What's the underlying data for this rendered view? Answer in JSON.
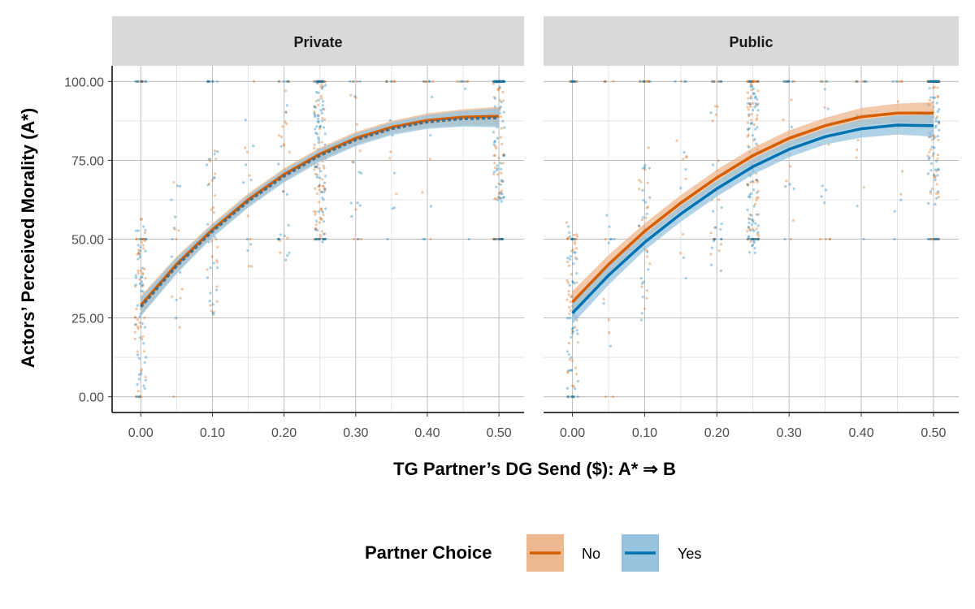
{
  "chart_data": {
    "type": "scatter",
    "xlabel": "TG Partner’s DG Send ($): A* ⇒ B",
    "ylabel": "Actors’ Perceived Morality (A*)",
    "xlim": [
      -0.04,
      0.535
    ],
    "ylim": [
      -5,
      105
    ],
    "x_ticks": [
      0.0,
      0.1,
      0.2,
      0.3,
      0.4,
      0.5
    ],
    "x_tick_labels": [
      "0.00",
      "0.10",
      "0.20",
      "0.30",
      "0.40",
      "0.50"
    ],
    "y_ticks": [
      0,
      25,
      50,
      75,
      100
    ],
    "y_tick_labels": [
      "0.00",
      "25.00",
      "50.00",
      "75.00",
      "100.00"
    ],
    "grid": true,
    "legend": {
      "title": "Partner Choice",
      "position": "bottom",
      "items": [
        {
          "label": "No",
          "color": "#D55E00",
          "fill": "#EDB88F"
        },
        {
          "label": "Yes",
          "color": "#0072B2",
          "fill": "#96C4DF"
        }
      ]
    },
    "point_x_levels": [
      0.0,
      0.05,
      0.1,
      0.15,
      0.2,
      0.25,
      0.3,
      0.35,
      0.4,
      0.45,
      0.5
    ],
    "point_note_shown_as": "jittered semi-transparent points",
    "panels": [
      {
        "title": "Private",
        "series": [
          {
            "name": "No",
            "x": [
              0,
              0.05,
              0.1,
              0.15,
              0.2,
              0.25,
              0.3,
              0.35,
              0.4,
              0.45,
              0.5
            ],
            "y": [
              29,
              42,
              53,
              62.5,
              70.5,
              77,
              82,
              85.5,
              87.7,
              88.7,
              89
            ],
            "ci_halfwidth": [
              3,
              2.5,
              2,
              2,
              2,
              2,
              2,
              2,
              2.2,
              2.5,
              3
            ]
          },
          {
            "name": "Yes",
            "x": [
              0,
              0.05,
              0.1,
              0.15,
              0.2,
              0.25,
              0.3,
              0.35,
              0.4,
              0.45,
              0.5
            ],
            "y": [
              28.5,
              41.5,
              52.5,
              62,
              70,
              76.5,
              81.5,
              85,
              87.2,
              88.2,
              88.5
            ],
            "ci_halfwidth": [
              3,
              2.5,
              2,
              2,
              2,
              2,
              2,
              2,
              2.2,
              2.5,
              3
            ]
          }
        ]
      },
      {
        "title": "Public",
        "series": [
          {
            "name": "No",
            "x": [
              0,
              0.05,
              0.1,
              0.15,
              0.2,
              0.25,
              0.3,
              0.35,
              0.4,
              0.45,
              0.5
            ],
            "y": [
              30,
              42,
              52.5,
              61.5,
              69.5,
              76.5,
              82,
              86,
              88.8,
              90,
              90
            ],
            "ci_halfwidth": [
              3.5,
              3,
              2.5,
              2.5,
              2.5,
              2.5,
              2.5,
              2.5,
              2.8,
              3,
              3.5
            ]
          },
          {
            "name": "Yes",
            "x": [
              0,
              0.05,
              0.1,
              0.15,
              0.2,
              0.25,
              0.3,
              0.35,
              0.4,
              0.45,
              0.5
            ],
            "y": [
              26.5,
              38.5,
              49,
              58,
              66,
              73,
              78.5,
              82.5,
              85,
              86.2,
              86
            ],
            "ci_halfwidth": [
              3.5,
              3,
              2.5,
              2.5,
              2.5,
              2.5,
              2.5,
              2.5,
              2.8,
              3,
              3.5
            ]
          }
        ]
      }
    ]
  }
}
